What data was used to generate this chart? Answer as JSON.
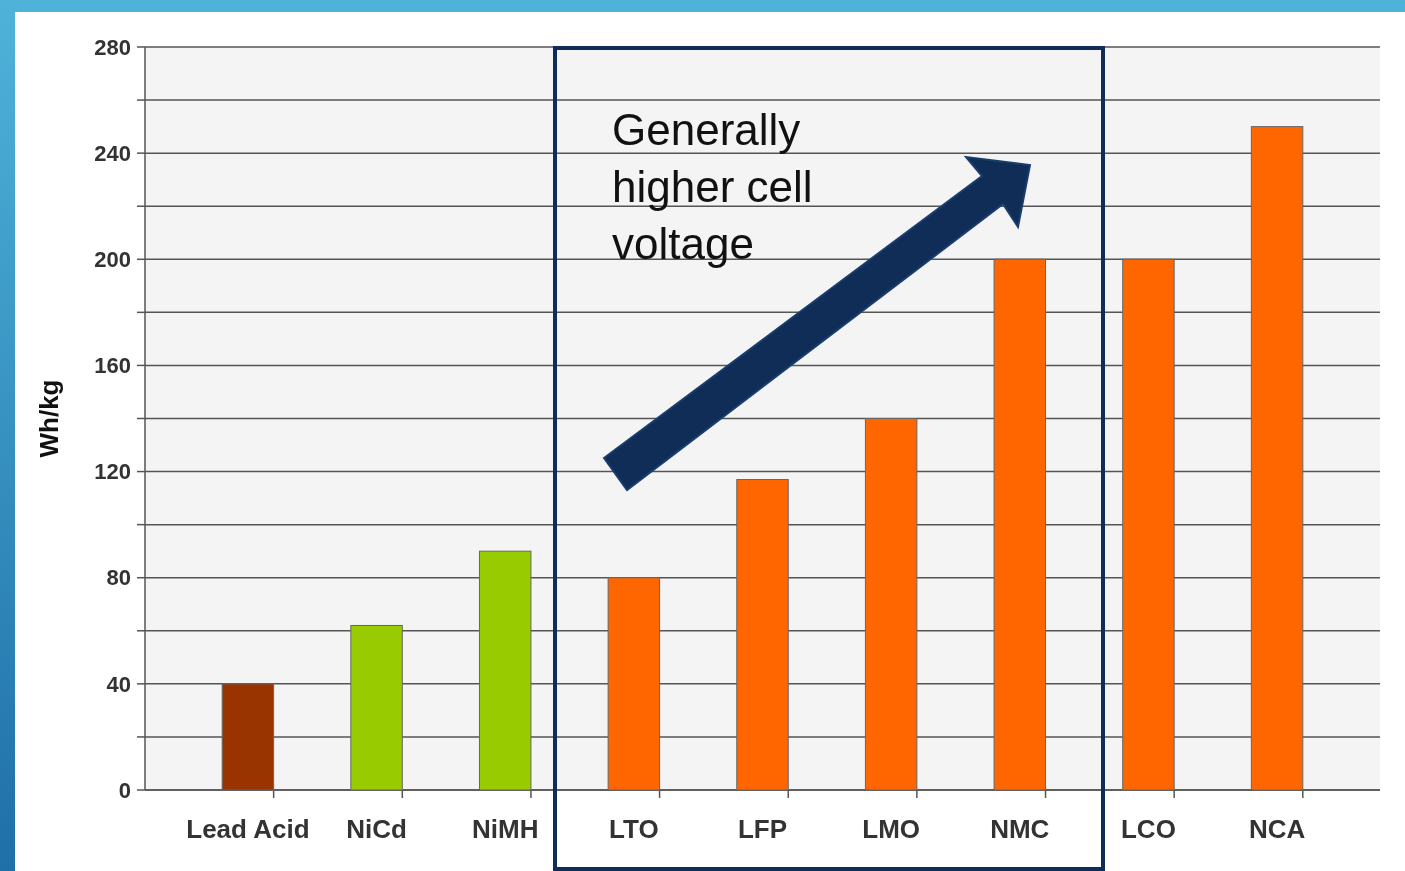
{
  "chart_data": {
    "type": "bar",
    "ylabel": "Wh/kg",
    "categories": [
      "Lead Acid",
      "NiCd",
      "NiMH",
      "LTO",
      "LFP",
      "LMO",
      "NMC",
      "LCO",
      "NCA"
    ],
    "values": [
      40,
      62,
      90,
      80,
      117,
      140,
      200,
      200,
      250
    ],
    "colors": [
      "#993300",
      "#99cc00",
      "#99cc00",
      "#ff6600",
      "#ff6600",
      "#ff6600",
      "#ff6600",
      "#ff6600",
      "#ff6600"
    ],
    "ylim": [
      0,
      280
    ],
    "yticks": [
      0,
      {
        "value": 20,
        "label": null
      },
      40,
      {
        "value": 60,
        "label": null
      },
      80,
      {
        "value": 100,
        "label": null
      },
      120,
      {
        "value": 140,
        "label": null
      },
      160,
      {
        "value": 180,
        "label": null
      },
      200,
      {
        "value": 220,
        "label": null
      },
      240,
      {
        "value": 260,
        "label": null
      },
      280
    ],
    "grid": "y",
    "annotations": [
      "Generally higher cell voltage"
    ]
  }
}
